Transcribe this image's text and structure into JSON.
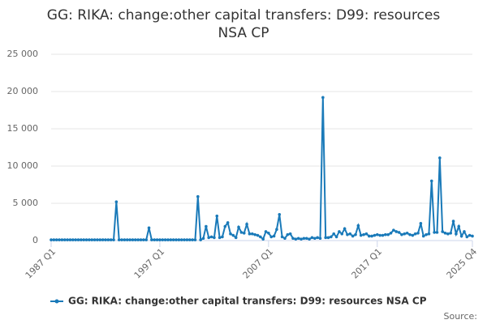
{
  "chart_data": {
    "type": "line",
    "title": "GG: RIKA: change:other capital transfers: D99: resources NSA CP",
    "categories": [
      "1987 Q1",
      null,
      null,
      null,
      null,
      null,
      null,
      null,
      null,
      null,
      null,
      null,
      null,
      null,
      null,
      null,
      null,
      null,
      null,
      null,
      null,
      null,
      null,
      null,
      null,
      null,
      null,
      null,
      null,
      null,
      null,
      null,
      null,
      null,
      null,
      null,
      null,
      null,
      null,
      null,
      "1997 Q1",
      null,
      null,
      null,
      null,
      null,
      null,
      null,
      null,
      null,
      null,
      null,
      null,
      null,
      null,
      null,
      null,
      null,
      null,
      null,
      null,
      null,
      null,
      null,
      null,
      null,
      null,
      null,
      null,
      null,
      null,
      null,
      null,
      null,
      null,
      null,
      null,
      null,
      null,
      null,
      "2007 Q1",
      null,
      null,
      null,
      null,
      null,
      null,
      null,
      null,
      null,
      null,
      null,
      null,
      null,
      null,
      null,
      null,
      null,
      null,
      null,
      null,
      null,
      null,
      null,
      null,
      null,
      null,
      null,
      null,
      null,
      null,
      null,
      null,
      null,
      null,
      null,
      null,
      null,
      null,
      null,
      "2017 Q1",
      null,
      null,
      null,
      null,
      null,
      null,
      null,
      null,
      null,
      null,
      null,
      null,
      null,
      null,
      null,
      null,
      null,
      null,
      null,
      null,
      null,
      null,
      null,
      null,
      null,
      null,
      null,
      null,
      null,
      null,
      null,
      null,
      null,
      null,
      "2025 Q4"
    ],
    "series": [
      {
        "name": "GG: RIKA: change:other capital transfers: D99: resources NSA CP",
        "color": "#1a7ab9",
        "values": [
          100,
          100,
          100,
          100,
          100,
          100,
          100,
          100,
          100,
          100,
          100,
          100,
          100,
          100,
          100,
          100,
          100,
          100,
          100,
          100,
          100,
          100,
          100,
          100,
          5200,
          100,
          100,
          100,
          100,
          100,
          100,
          100,
          100,
          100,
          100,
          100,
          1700,
          100,
          100,
          100,
          100,
          100,
          100,
          100,
          100,
          100,
          100,
          100,
          100,
          100,
          100,
          100,
          100,
          100,
          5900,
          100,
          300,
          1900,
          400,
          500,
          400,
          3300,
          400,
          500,
          1900,
          2400,
          900,
          700,
          400,
          1800,
          1100,
          1000,
          2200,
          900,
          900,
          800,
          700,
          500,
          200,
          1200,
          1000,
          500,
          600,
          1500,
          3500,
          500,
          300,
          800,
          900,
          300,
          200,
          300,
          200,
          300,
          300,
          200,
          400,
          300,
          400,
          300,
          19200,
          400,
          400,
          500,
          900,
          500,
          1200,
          900,
          1600,
          800,
          900,
          600,
          800,
          2000,
          700,
          800,
          900,
          600,
          600,
          700,
          800,
          700,
          700,
          800,
          800,
          1000,
          1400,
          1200,
          1100,
          800,
          900,
          1000,
          800,
          700,
          900,
          1000,
          2300,
          600,
          800,
          900,
          8000,
          1100,
          1100,
          11100,
          1200,
          1000,
          900,
          1000,
          2600,
          900,
          1900,
          600,
          1200,
          500,
          700,
          600
        ]
      }
    ],
    "ylim": [
      0,
      25000
    ],
    "yticks": [
      0,
      {
        "value": 5000,
        "label": "5 000"
      },
      {
        "value": 10000,
        "label": "10 000"
      },
      {
        "value": 15000,
        "label": "15 000"
      },
      {
        "value": 20000,
        "label": "20 000"
      },
      {
        "value": 25000,
        "label": "25 000"
      }
    ],
    "grid": true,
    "legend": "bottom",
    "source": "Source:"
  }
}
